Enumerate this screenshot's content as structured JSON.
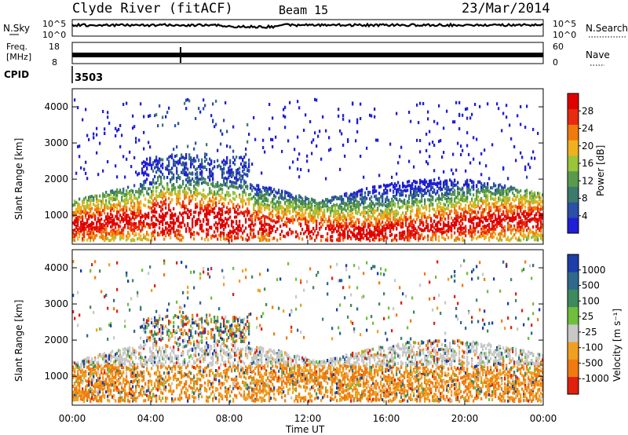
{
  "header": {
    "station": "Clyde River (fitACF)",
    "beam": "Beam 15",
    "date": "23/Mar/2014"
  },
  "top_panels": {
    "nsky_label": "N.Sky",
    "nsky_ticks": [
      "10^5",
      "10^0"
    ],
    "nsearch_label": "N.Search",
    "nsearch_ticks": [
      "10^5",
      "10^0"
    ],
    "freq_label_1": "Freq.",
    "freq_label_2": "[MHz]",
    "freq_ticks": [
      "18",
      "8"
    ],
    "nave_label": "Nave",
    "nave_ticks": [
      "60",
      "0"
    ],
    "cpid_label": "CPID",
    "cpid_value": "3503"
  },
  "chart_data": [
    {
      "type": "heatmap",
      "name": "power",
      "ylabel": "Slant Range [km]",
      "yticks": [
        "1000",
        "2000",
        "3000",
        "4000"
      ],
      "ylim": [
        200,
        4500
      ],
      "xlim": [
        "00:00",
        "24:00"
      ],
      "colorbar_label": "Power [dB]",
      "colorbar_ticks": [
        "4",
        "8",
        "12",
        "16",
        "20",
        "24",
        "28"
      ],
      "colorbar_range": [
        0,
        32
      ],
      "colors": [
        "#1f1fd6",
        "#2c4fa8",
        "#3c7a6c",
        "#5a9a4c",
        "#9ac43a",
        "#f0b020",
        "#f07a10",
        "#e82a10",
        "#e00000"
      ]
    },
    {
      "type": "heatmap",
      "name": "velocity",
      "ylabel": "Slant Range [km]",
      "yticks": [
        "1000",
        "2000",
        "3000",
        "4000"
      ],
      "ylim": [
        200,
        4500
      ],
      "xlim": [
        "00:00",
        "24:00"
      ],
      "colorbar_label": "Velocity [m s⁻¹]",
      "colorbar_ticks": [
        "1000",
        "500",
        "100",
        "25",
        "-25",
        "-100",
        "-500",
        "-1000"
      ],
      "colors": [
        "#1c3fa8",
        "#2f6a8a",
        "#3c8a5e",
        "#6fbf3c",
        "#c8c8c8",
        "#f0a020",
        "#f07a10",
        "#e02010"
      ]
    }
  ],
  "x_axis": {
    "ticks": [
      "00:00",
      "04:00",
      "08:00",
      "12:00",
      "16:00",
      "20:00",
      "00:00"
    ],
    "label": "Time UT"
  }
}
